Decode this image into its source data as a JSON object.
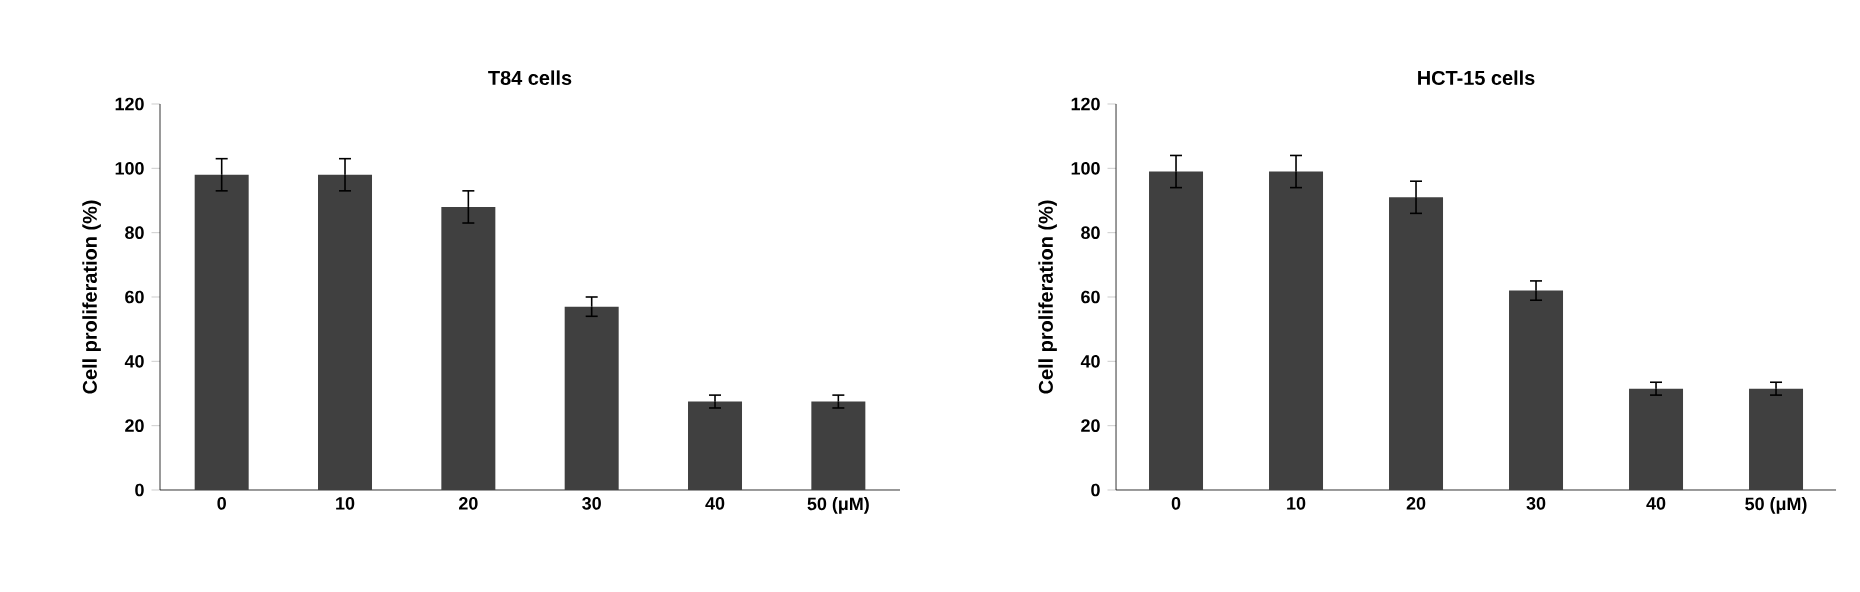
{
  "chart_data": [
    {
      "type": "bar",
      "title": "T84 cells",
      "ylabel": "Cell proliferation (%)",
      "categories": [
        "0",
        "10",
        "20",
        "30",
        "40",
        "50 (μM)"
      ],
      "values": [
        98,
        98,
        88,
        57,
        27.5,
        27.5
      ],
      "errors": [
        5,
        5,
        5,
        3,
        2,
        2
      ],
      "color": "#404040",
      "ylim": [
        0,
        120
      ],
      "yticks": [
        0,
        20,
        40,
        60,
        80,
        100,
        120
      ]
    },
    {
      "type": "bar",
      "title": "HCT-15 cells",
      "ylabel": "Cell proliferation (%)",
      "categories": [
        "0",
        "10",
        "20",
        "30",
        "40",
        "50 (μM)"
      ],
      "values": [
        99,
        99,
        91,
        62,
        31.5,
        31.5
      ],
      "errors": [
        5,
        5,
        5,
        3,
        2,
        2
      ],
      "color": "#404040",
      "ylim": [
        0,
        120
      ],
      "yticks": [
        0,
        20,
        40,
        60,
        80,
        100,
        120
      ]
    }
  ]
}
